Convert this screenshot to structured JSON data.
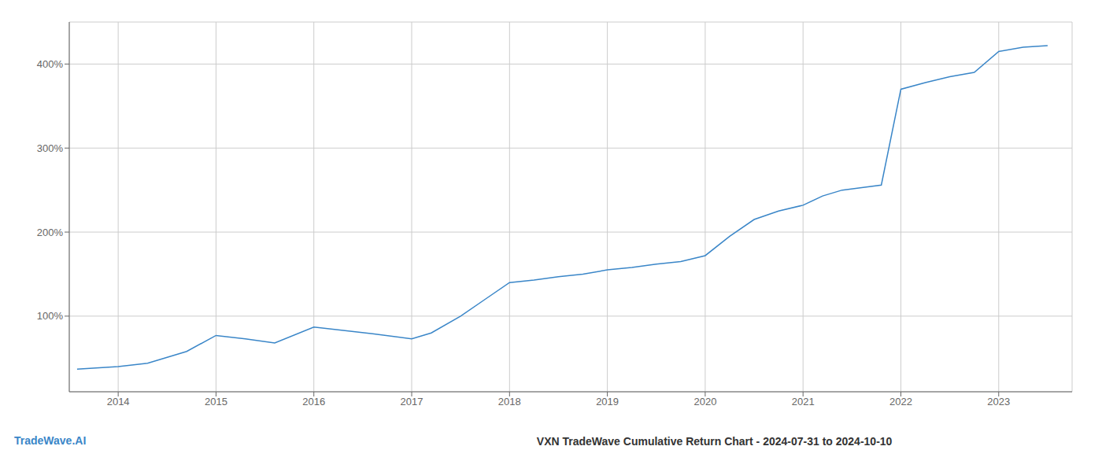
{
  "chart_data": {
    "type": "line",
    "title": "VXN TradeWave Cumulative Return Chart - 2024-07-31 to 2024-10-10",
    "annotations": [
      "TradeWave.AI"
    ],
    "color": "#3a86c8",
    "grid": true,
    "x": [
      2013.58,
      2014.0,
      2014.3,
      2014.7,
      2015.0,
      2015.3,
      2015.6,
      2016.0,
      2016.3,
      2016.6,
      2017.0,
      2017.2,
      2017.5,
      2017.75,
      2018.0,
      2018.25,
      2018.5,
      2018.75,
      2019.0,
      2019.25,
      2019.5,
      2019.75,
      2020.0,
      2020.25,
      2020.5,
      2020.75,
      2021.0,
      2021.2,
      2021.4,
      2021.6,
      2021.8,
      2022.0,
      2022.25,
      2022.5,
      2022.75,
      2023.0,
      2023.25,
      2023.5
    ],
    "values": [
      37,
      40,
      44,
      58,
      77,
      73,
      68,
      87,
      83,
      79,
      73,
      80,
      100,
      120,
      140,
      143,
      147,
      150,
      155,
      158,
      162,
      165,
      172,
      195,
      215,
      225,
      232,
      243,
      250,
      253,
      256,
      370,
      378,
      385,
      390,
      415,
      420,
      422
    ],
    "xlim": [
      2013.5,
      2023.75
    ],
    "xticks": [
      2014,
      2015,
      2016,
      2017,
      2018,
      2019,
      2020,
      2021,
      2022,
      2023
    ],
    "ylim": [
      10,
      450
    ],
    "yticks": [
      {
        "value": 100,
        "label": "100%"
      },
      {
        "value": 200,
        "label": "200%"
      },
      {
        "value": 300,
        "label": "300%"
      },
      {
        "value": 400,
        "label": "400%"
      }
    ]
  }
}
